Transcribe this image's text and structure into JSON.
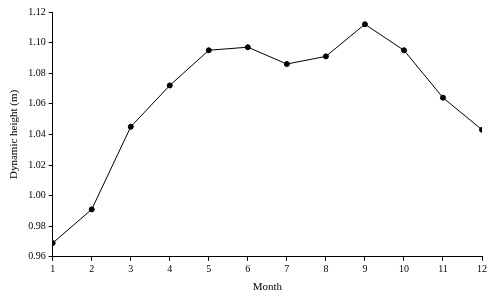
{
  "chart_data": {
    "type": "line",
    "x_label": "Month",
    "y_label": "Dynamic height (m)",
    "x": [
      1,
      2,
      3,
      4,
      5,
      6,
      7,
      8,
      9,
      10,
      11,
      12
    ],
    "values": [
      0.969,
      0.991,
      1.045,
      1.072,
      1.095,
      1.097,
      1.086,
      1.091,
      1.112,
      1.095,
      1.064,
      1.043
    ],
    "color": "#000000",
    "marker": "circle",
    "line_style": "solid",
    "xlim": [
      1,
      12
    ],
    "xticks": [
      1,
      2,
      3,
      4,
      5,
      6,
      7,
      8,
      9,
      10,
      11,
      12
    ],
    "ylim": [
      0.96,
      1.12
    ],
    "yticks": [
      0.96,
      0.98,
      {
        "value": 1,
        "label": "1.00"
      },
      1.02,
      1.04,
      1.06,
      1.08,
      {
        "value": 1.1,
        "label": "1.10"
      },
      1.12
    ],
    "grid": false
  }
}
